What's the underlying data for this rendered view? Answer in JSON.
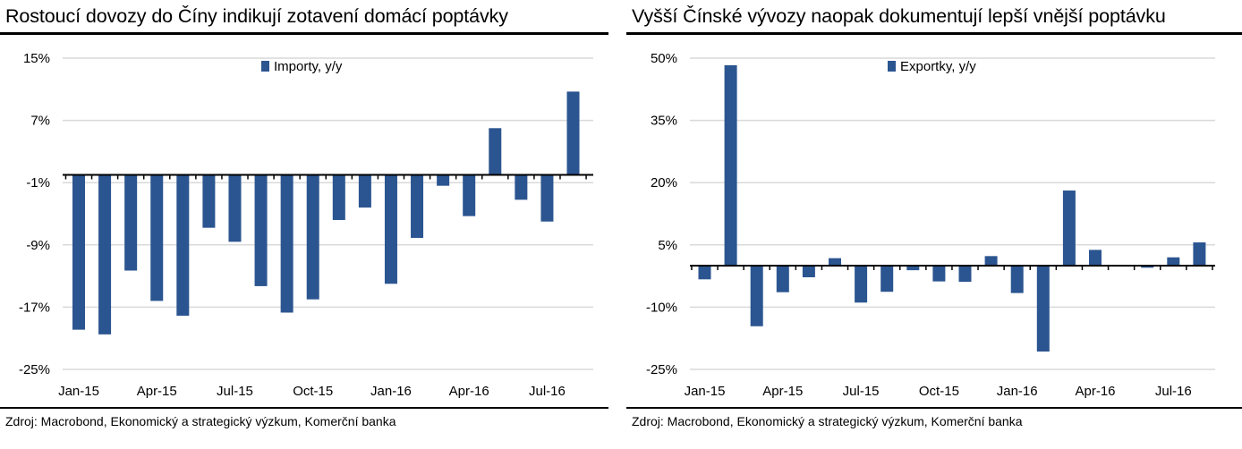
{
  "charts": [
    {
      "title": "Rostoucí dovozy do Číny indikují zotavení domácí poptávky",
      "source": "Zdroj: Macrobond, Ekonomický a strategický výzkum, Komerční banka"
    },
    {
      "title": "Vyšší Čínské vývozy naopak dokumentují lepší vnější poptávku",
      "source": "Zdroj: Macrobond, Ekonomický a strategický výzkum, Komerční banka"
    }
  ],
  "chart_data": [
    {
      "type": "bar",
      "title": "Rostoucí dovozy do Číny indikují zotavení domácí poptávky",
      "categories": [
        "Jan-15",
        "Feb-15",
        "Mar-15",
        "Apr-15",
        "May-15",
        "Jun-15",
        "Jul-15",
        "Aug-15",
        "Sep-15",
        "Oct-15",
        "Nov-15",
        "Dec-15",
        "Jan-16",
        "Feb-16",
        "Mar-16",
        "Apr-16",
        "May-16",
        "Jun-16",
        "Jul-16",
        "Aug-16"
      ],
      "x_tick_labels": [
        "Jan-15",
        "Apr-15",
        "Jul-15",
        "Oct-15",
        "Jan-16",
        "Apr-16",
        "Jul-16"
      ],
      "y_ticks": [
        15,
        7,
        -1,
        -9,
        -17,
        -25
      ],
      "y_tick_labels": [
        "15%",
        "7%",
        "-1%",
        "-9%",
        "-17%",
        "-25%"
      ],
      "ylim": [
        -25,
        15
      ],
      "grid": true,
      "legend_position": "top-center",
      "color": "#2b5590",
      "series": [
        {
          "name": "Importy, y/y",
          "values": [
            -19.9,
            -20.5,
            -12.3,
            -16.2,
            -18.1,
            -6.8,
            -8.6,
            -14.3,
            -17.7,
            -16.0,
            -5.8,
            -4.2,
            -14.0,
            -8.1,
            -1.4,
            -5.3,
            6.0,
            -3.2,
            -6.0,
            10.7
          ]
        }
      ]
    },
    {
      "type": "bar",
      "title": "Vyšší Čínské vývozy naopak dokumentují lepší vnější poptávku",
      "categories": [
        "Jan-15",
        "Feb-15",
        "Mar-15",
        "Apr-15",
        "May-15",
        "Jun-15",
        "Jul-15",
        "Aug-15",
        "Sep-15",
        "Oct-15",
        "Nov-15",
        "Dec-15",
        "Jan-16",
        "Feb-16",
        "Mar-16",
        "Apr-16",
        "May-16",
        "Jun-16",
        "Jul-16",
        "Aug-16"
      ],
      "x_tick_labels": [
        "Jan-15",
        "Apr-15",
        "Jul-15",
        "Oct-15",
        "Jan-16",
        "Apr-16",
        "Jul-16"
      ],
      "y_ticks": [
        50,
        35,
        20,
        5,
        -10,
        -25
      ],
      "y_tick_labels": [
        "50%",
        "35%",
        "20%",
        "5%",
        "-10%",
        "-25%"
      ],
      "ylim": [
        -25,
        50
      ],
      "grid": true,
      "legend_position": "top-center",
      "color": "#2b5590",
      "series": [
        {
          "name": "Exportky, y/y",
          "values": [
            -3.3,
            48.3,
            -14.6,
            -6.4,
            -2.8,
            1.8,
            -8.9,
            -6.3,
            -1.1,
            -3.8,
            -3.9,
            2.3,
            -6.6,
            -20.7,
            18.1,
            3.8,
            0.0,
            -0.5,
            2.0,
            5.6
          ]
        }
      ]
    }
  ]
}
